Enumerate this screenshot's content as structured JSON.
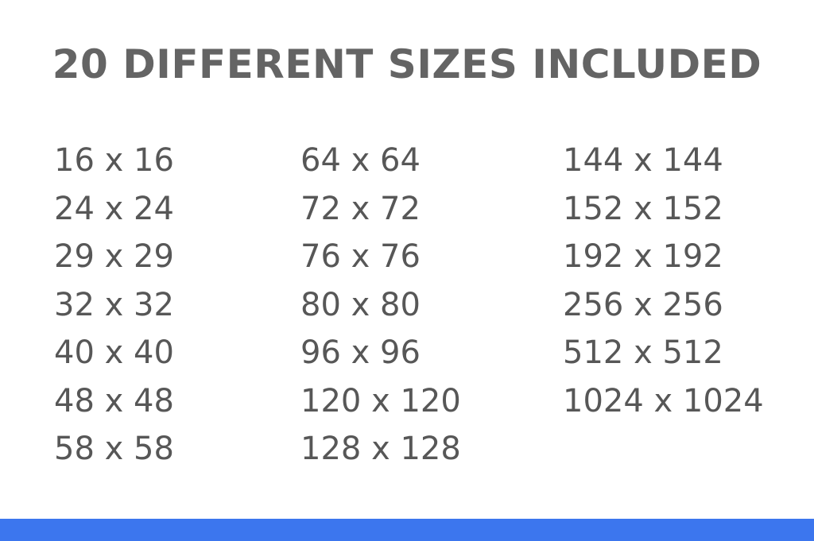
{
  "title": "20 DIFFERENT SIZES INCLUDED",
  "columns": [
    [
      "16 x 16",
      "24 x 24",
      "29 x 29",
      "32 x 32",
      "40 x 40",
      "48 x 48",
      "58 x 58"
    ],
    [
      "64 x 64",
      "72 x 72",
      "76 x 76",
      "80 x 80",
      "96 x 96",
      "120 x 120",
      "128 x 128"
    ],
    [
      "144 x 144",
      "152 x 152",
      "192 x 192",
      "256 x 256",
      "512 x 512",
      "1024 x 1024"
    ]
  ],
  "colors": {
    "title": "#646464",
    "text": "#575757",
    "accent_bar": "#3c76ee"
  }
}
